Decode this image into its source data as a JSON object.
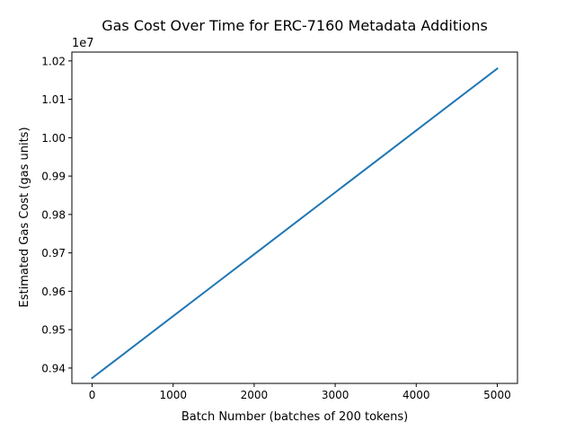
{
  "chart_data": {
    "type": "line",
    "title": "Gas Cost Over Time for ERC-7160 Metadata Additions",
    "xlabel": "Batch Number (batches of 200 tokens)",
    "ylabel": "Estimated Gas Cost (gas units)",
    "y_offset_label": "1e7",
    "xlim": [
      -250,
      5250
    ],
    "ylim": [
      9360000,
      10223000
    ],
    "x_ticks": [
      0,
      1000,
      2000,
      3000,
      4000,
      5000
    ],
    "x_tick_labels": [
      "0",
      "1000",
      "2000",
      "3000",
      "4000",
      "5000"
    ],
    "y_ticks": [
      9400000,
      9500000,
      9600000,
      9700000,
      9800000,
      9900000,
      10000000,
      10100000,
      10200000
    ],
    "y_tick_labels": [
      "0.94",
      "0.95",
      "0.96",
      "0.97",
      "0.98",
      "0.99",
      "1.00",
      "1.01",
      "1.02"
    ],
    "grid": false,
    "legend": "none",
    "series": [
      {
        "color": "#1f77b4",
        "x": [
          0,
          500,
          1000,
          1500,
          2000,
          2500,
          3000,
          3500,
          4000,
          4500,
          5000
        ],
        "values": [
          9374000,
          9454600,
          9535200,
          9615800,
          9696400,
          9777000,
          9857600,
          9938200,
          10018800,
          10099400,
          10180000
        ]
      }
    ]
  }
}
